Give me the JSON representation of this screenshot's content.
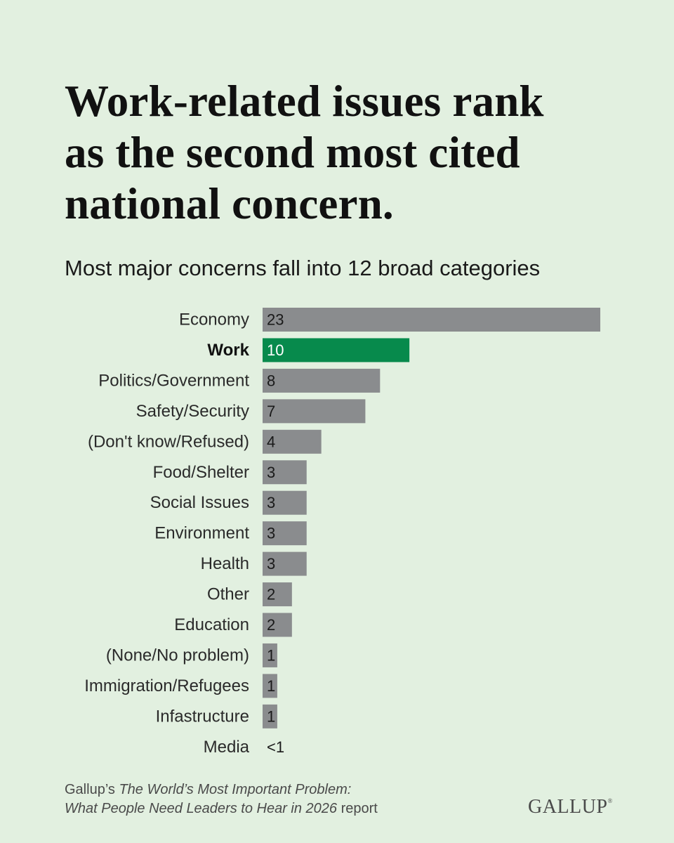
{
  "title_lines": [
    "Work-related issues rank",
    "as the second most cited",
    "national concern."
  ],
  "subtitle": "Most major concerns fall into 12 broad categories",
  "chart_data": {
    "type": "bar",
    "orientation": "horizontal",
    "categories": [
      "Economy",
      "Work",
      "Politics/Government",
      "Safety/Security",
      "(Don't know/Refused)",
      "Food/Shelter",
      "Social Issues",
      "Environment",
      "Health",
      "Other",
      "Education",
      "(None/No problem)",
      "Immigration/Refugees",
      "Infastructure",
      "Media"
    ],
    "values": [
      23,
      10,
      8,
      7,
      4,
      3,
      3,
      3,
      3,
      2,
      2,
      1,
      1,
      1,
      0.3
    ],
    "data_labels": [
      "23",
      "10",
      "8",
      "7",
      "4",
      "3",
      "3",
      "3",
      "3",
      "2",
      "2",
      "1",
      "1",
      "1",
      "<1"
    ],
    "highlight": "Work",
    "xlim": [
      0,
      23
    ],
    "grid": false,
    "legend": "none"
  },
  "colors": {
    "background": "#e2f0e0",
    "bar": "#8a8c8e",
    "highlight_bar": "#078a4c"
  },
  "source": {
    "prefix": "Gallup’s ",
    "italic_line1": "The World’s Most Important Problem:",
    "italic_line2": "What People Need Leaders to Hear in 2026",
    "suffix": " report"
  },
  "logo_text": "GALLUP"
}
